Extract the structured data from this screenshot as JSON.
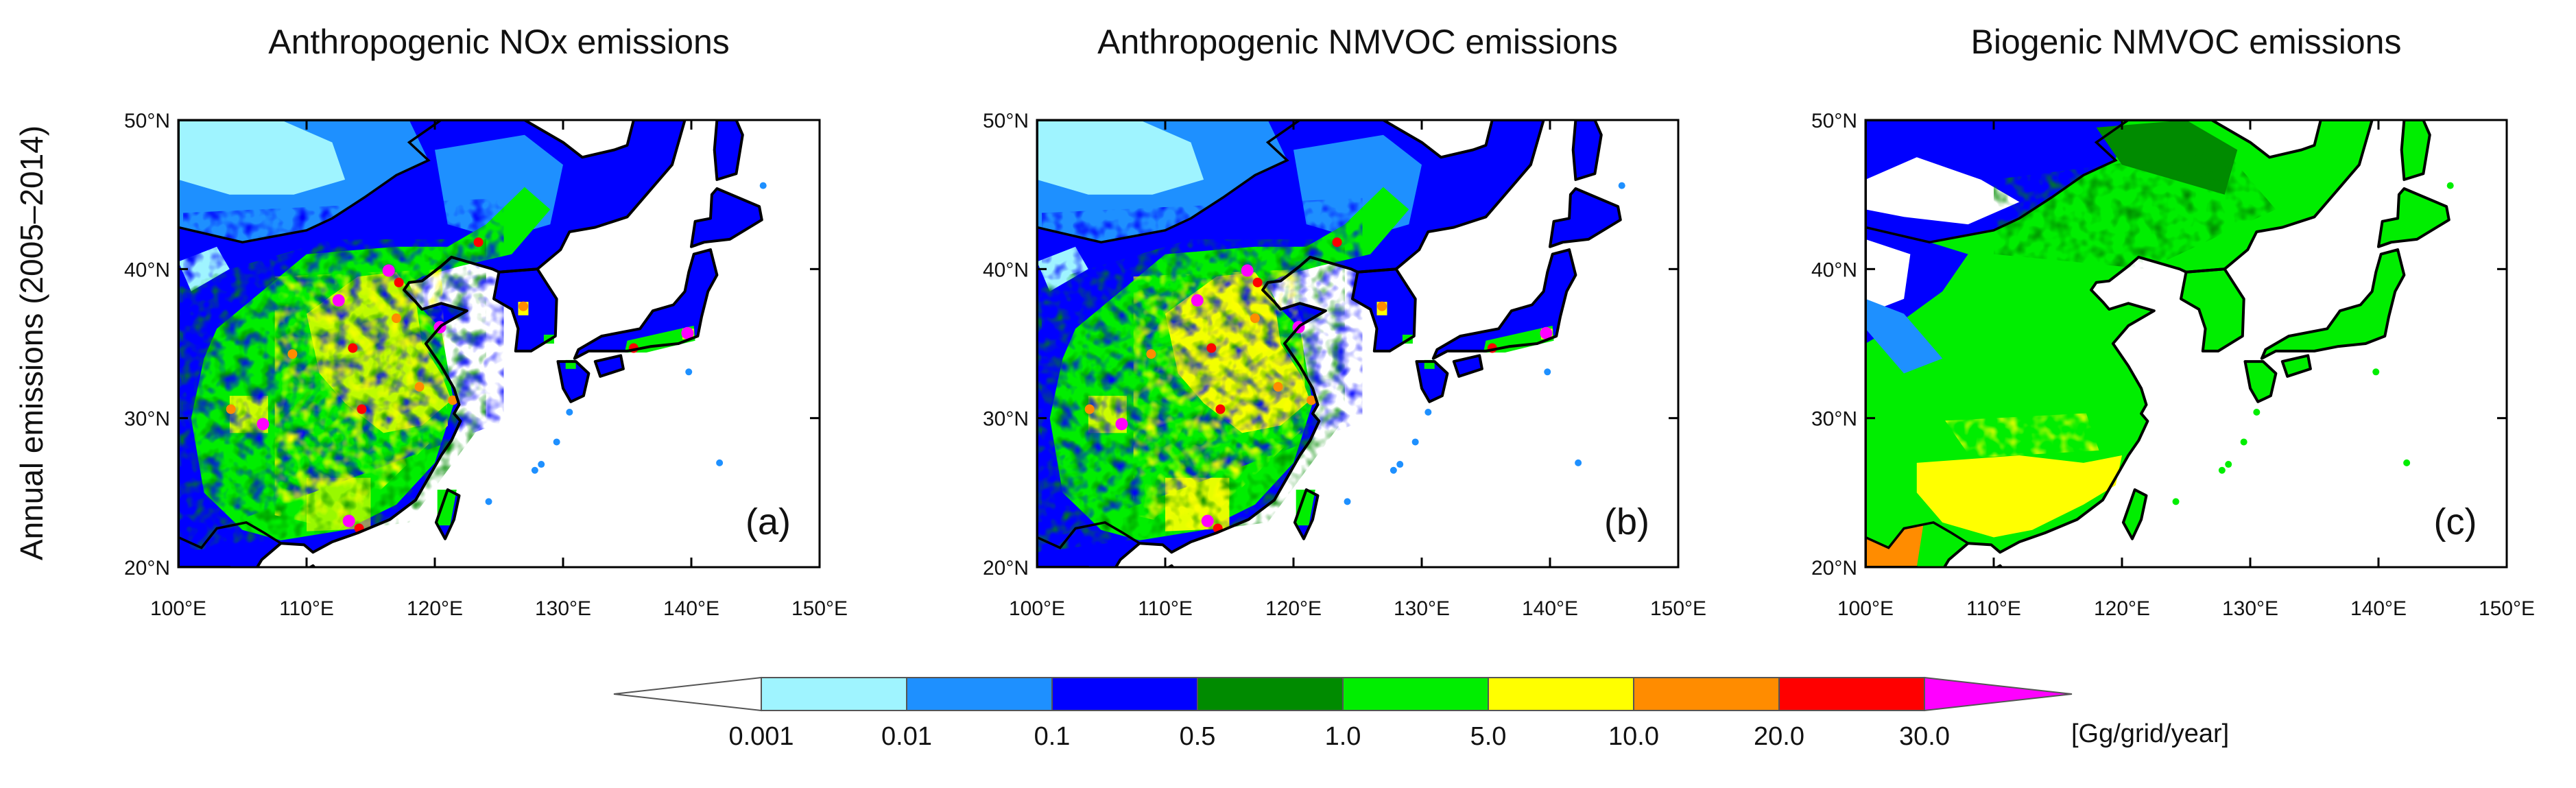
{
  "y_axis_label": "Annual emissions (2005–2014)",
  "lon_ticks": [
    "100°E",
    "110°E",
    "120°E",
    "130°E",
    "140°E",
    "150°E"
  ],
  "lat_ticks": [
    "50°N",
    "40°N",
    "30°N",
    "20°N"
  ],
  "panels": [
    {
      "title": "Anthropogenic NOx emissions",
      "label": "(a)"
    },
    {
      "title": "Anthropogenic NMVOC emissions",
      "label": "(b)"
    },
    {
      "title": "Biogenic NMVOC emissions",
      "label": "(c)"
    }
  ],
  "colorbar": {
    "unit": "[Gg/grid/year]",
    "levels": [
      "0.001",
      "0.01",
      "0.1",
      "0.5",
      "1.0",
      "5.0",
      "10.0",
      "20.0",
      "30.0"
    ],
    "colors": [
      "#ffffff",
      "#9ff4ff",
      "#1e90ff",
      "#0000ff",
      "#008b00",
      "#00ee00",
      "#ffff00",
      "#ff8c00",
      "#ff0000",
      "#ff00ff"
    ]
  },
  "colors": {
    "land_line": "#000000",
    "sea": "#ffffff"
  }
}
